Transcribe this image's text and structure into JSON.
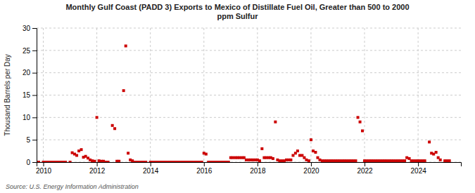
{
  "chart_data": {
    "type": "scatter",
    "title": "Monthly Gulf Coast (PADD 3) Exports to Mexico of Distillate Fuel Oil, Greater than 500 to 2000\nppm Sulfur",
    "y_label": "Thousand Barrels per Day",
    "annotations": [
      "Source: U.S. Energy Information Administration"
    ],
    "color": "#cc0000",
    "marker": "square",
    "grid": true,
    "xlim": [
      2009.75,
      2025.6
    ],
    "xticks": [
      2010,
      2012,
      2014,
      2016,
      2018,
      2020,
      2022,
      2024
    ],
    "ylim": [
      0,
      30
    ],
    "yticks": [
      0,
      5,
      10,
      15,
      20,
      25,
      30
    ],
    "x": [
      2009.83,
      2010.0,
      2010.08,
      2010.17,
      2010.25,
      2010.33,
      2010.42,
      2010.5,
      2010.58,
      2010.67,
      2010.75,
      2010.83,
      2011.0,
      2011.08,
      2011.17,
      2011.25,
      2011.33,
      2011.42,
      2011.5,
      2011.58,
      2011.67,
      2011.75,
      2011.83,
      2011.92,
      2012.0,
      2012.08,
      2012.17,
      2012.25,
      2012.33,
      2012.42,
      2012.58,
      2012.67,
      2012.75,
      2012.83,
      2013.0,
      2013.08,
      2013.17,
      2013.25,
      2013.33,
      2013.42,
      2013.5,
      2013.58,
      2013.67,
      2013.75,
      2013.83,
      2014.0,
      2014.08,
      2014.17,
      2014.25,
      2014.33,
      2014.42,
      2014.5,
      2014.58,
      2014.67,
      2014.75,
      2014.83,
      2014.92,
      2015.0,
      2015.08,
      2015.17,
      2015.25,
      2015.33,
      2015.42,
      2015.5,
      2015.58,
      2015.67,
      2015.75,
      2015.83,
      2015.92,
      2016.0,
      2016.08,
      2016.17,
      2016.25,
      2016.33,
      2016.42,
      2016.5,
      2016.58,
      2016.67,
      2016.75,
      2016.83,
      2016.92,
      2017.0,
      2017.08,
      2017.17,
      2017.25,
      2017.33,
      2017.42,
      2017.5,
      2017.58,
      2017.67,
      2017.75,
      2017.83,
      2017.92,
      2018.0,
      2018.08,
      2018.17,
      2018.25,
      2018.33,
      2018.42,
      2018.5,
      2018.58,
      2018.67,
      2018.75,
      2018.83,
      2018.92,
      2019.0,
      2019.08,
      2019.17,
      2019.25,
      2019.33,
      2019.42,
      2019.5,
      2019.58,
      2019.67,
      2019.75,
      2019.83,
      2019.92,
      2020.0,
      2020.08,
      2020.17,
      2020.25,
      2020.33,
      2020.42,
      2020.5,
      2020.58,
      2020.67,
      2020.75,
      2020.83,
      2020.92,
      2021.0,
      2021.08,
      2021.17,
      2021.25,
      2021.33,
      2021.42,
      2021.5,
      2021.58,
      2021.67,
      2021.75,
      2021.83,
      2021.92,
      2022.0,
      2022.08,
      2022.17,
      2022.25,
      2022.33,
      2022.42,
      2022.5,
      2022.58,
      2022.67,
      2022.75,
      2022.83,
      2022.92,
      2023.0,
      2023.08,
      2023.17,
      2023.25,
      2023.33,
      2023.42,
      2023.5,
      2023.58,
      2023.67,
      2023.75,
      2023.83,
      2023.92,
      2024.0,
      2024.08,
      2024.17,
      2024.25,
      2024.42,
      2024.5,
      2024.58,
      2024.67,
      2024.75,
      2024.83,
      2025.0,
      2025.08,
      2025.17
    ],
    "values": [
      0.0,
      0.0,
      0.0,
      0.0,
      0.0,
      0.0,
      0.0,
      0.0,
      0.0,
      0.0,
      0.0,
      0.0,
      0.0,
      2.1,
      1.8,
      1.5,
      2.5,
      2.8,
      1.1,
      1.3,
      0.9,
      0.5,
      0.3,
      0.2,
      10.0,
      0.3,
      0.2,
      0.2,
      0.0,
      0.0,
      8.2,
      7.5,
      0.2,
      0.2,
      16.0,
      26.0,
      2.0,
      0.5,
      0.3,
      0.0,
      0.0,
      0.0,
      0.0,
      0.0,
      0.0,
      0.0,
      0.0,
      0.0,
      0.0,
      0.0,
      0.0,
      0.0,
      0.0,
      0.0,
      0.0,
      0.0,
      0.0,
      0.0,
      0.0,
      0.0,
      0.0,
      0.0,
      0.0,
      0.0,
      0.0,
      0.0,
      0.0,
      0.0,
      0.0,
      2.0,
      1.8,
      0.0,
      0.0,
      0.0,
      0.0,
      0.0,
      0.0,
      0.0,
      0.0,
      0.0,
      0.0,
      1.0,
      1.0,
      1.0,
      1.0,
      1.0,
      1.0,
      1.0,
      0.5,
      0.5,
      0.5,
      0.5,
      0.5,
      0.5,
      0.3,
      3.0,
      1.0,
      1.0,
      1.0,
      1.0,
      0.8,
      9.0,
      0.5,
      0.3,
      0.3,
      0.3,
      0.5,
      0.5,
      0.5,
      1.5,
      2.0,
      2.5,
      1.5,
      1.5,
      1.0,
      0.5,
      0.3,
      5.0,
      2.5,
      2.2,
      1.0,
      0.5,
      0.3,
      0.3,
      0.3,
      0.3,
      0.3,
      0.3,
      0.3,
      0.3,
      0.3,
      0.3,
      0.3,
      0.3,
      0.3,
      0.3,
      0.3,
      0.3,
      10.0,
      9.0,
      7.0,
      0.3,
      0.3,
      0.3,
      0.3,
      0.3,
      0.3,
      0.3,
      0.3,
      0.3,
      0.3,
      0.3,
      0.3,
      0.3,
      0.3,
      0.3,
      0.3,
      0.3,
      0.3,
      0.3,
      1.0,
      0.8,
      0.3,
      0.3,
      0.3,
      0.3,
      0.3,
      0.3,
      0.3,
      4.5,
      2.0,
      1.8,
      2.2,
      1.0,
      0.5,
      0.3,
      0.3,
      0.3
    ]
  }
}
